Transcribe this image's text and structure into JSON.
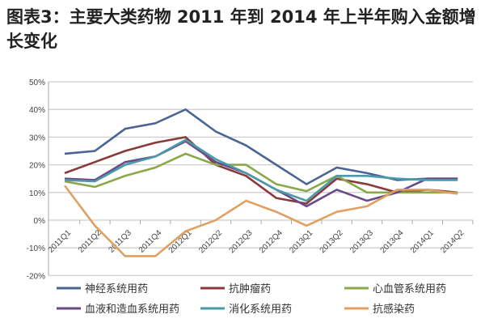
{
  "chart_data": {
    "type": "line",
    "title": "图表3：主要大类药物 2011 年到 2014 年上半年购入金额增长变化",
    "categories": [
      "2011Q1",
      "2011Q2",
      "2011Q3",
      "2011Q4",
      "2012Q1",
      "2012Q2",
      "2012Q3",
      "2012Q4",
      "2013Q1",
      "2013Q2",
      "2013Q3",
      "2013Q4",
      "2014Q1",
      "2014Q2"
    ],
    "ylim": [
      -20,
      50
    ],
    "yticks": [
      "-20%",
      "-10%",
      "0%",
      "10%",
      "20%",
      "30%",
      "40%",
      "50%"
    ],
    "grid": true,
    "legend_position": "bottom",
    "series": [
      {
        "name": "神经系统用药",
        "color": "#4a6494",
        "values": [
          24,
          25,
          33,
          35,
          40,
          32,
          27,
          20,
          13,
          19,
          17,
          14.5,
          15,
          15
        ]
      },
      {
        "name": "抗肿瘤药",
        "color": "#8b3a3a",
        "values": [
          17,
          21,
          25,
          28,
          30,
          20,
          16,
          8,
          6,
          15,
          13,
          10,
          11,
          10
        ]
      },
      {
        "name": "心血管系统用药",
        "color": "#8aa84a",
        "values": [
          14,
          12,
          16,
          19,
          24,
          20,
          20,
          13,
          10.5,
          16,
          10,
          10,
          10,
          10
        ]
      },
      {
        "name": "血液和造血系统用药",
        "color": "#6a4a8a",
        "values": [
          15,
          14.5,
          21,
          23,
          28.5,
          21,
          17,
          11,
          5,
          11,
          7,
          10,
          15,
          15
        ]
      },
      {
        "name": "消化系统用药",
        "color": "#4a9aaa",
        "values": [
          14.5,
          14,
          20,
          23,
          29,
          22,
          17,
          11,
          7,
          16,
          16,
          15,
          14.5,
          14.5
        ]
      },
      {
        "name": "抗感染药",
        "color": "#e0a060",
        "values": [
          12.5,
          -2,
          -13,
          -13,
          -4,
          0,
          7,
          3,
          -2,
          3,
          5,
          11,
          11,
          9.5
        ]
      }
    ]
  }
}
